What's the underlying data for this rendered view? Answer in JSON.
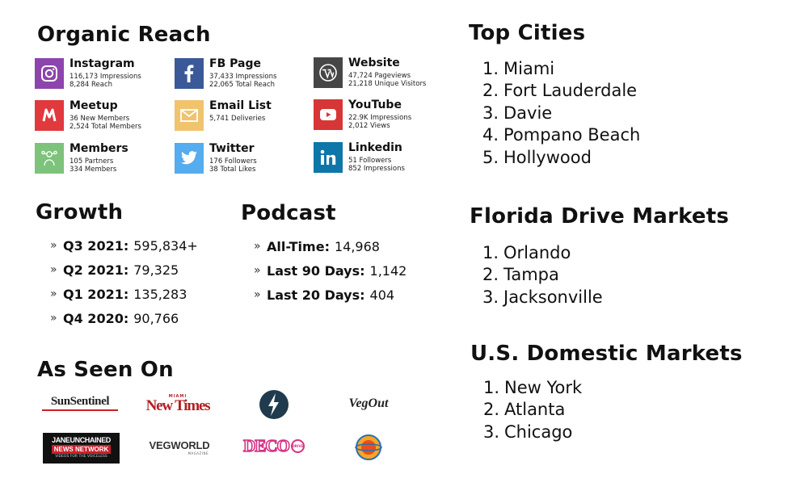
{
  "organic_reach": {
    "title": "Organic Reach",
    "tiles": [
      {
        "name": "Instagram",
        "line1": "116,173 Impressions",
        "line2": "8,284 Reach",
        "icon": "instagram-icon",
        "color": "#8e44ad"
      },
      {
        "name": "FB Page",
        "line1": "37,433 Impressions",
        "line2": "22,065 Total Reach",
        "icon": "facebook-icon",
        "color": "#3b5998"
      },
      {
        "name": "Website",
        "line1": "47,724 Pageviews",
        "line2": "21,218 Unique Visitors",
        "icon": "wordpress-icon",
        "color": "#464646"
      },
      {
        "name": "Meetup",
        "line1": "36 New Members",
        "line2": "2,524 Total Members",
        "icon": "meetup-icon",
        "color": "#e0393e"
      },
      {
        "name": "Email List",
        "line1": "5,741 Deliveries",
        "line2": "",
        "icon": "envelope-icon",
        "color": "#f0c36d"
      },
      {
        "name": "YouTube",
        "line1": "22.9K Impressions",
        "line2": "2,012 Views",
        "icon": "youtube-icon",
        "color": "#d73636"
      },
      {
        "name": "Members",
        "line1": "105 Partners",
        "line2": "334 Members",
        "icon": "members-icon",
        "color": "#7dc37b"
      },
      {
        "name": "Twitter",
        "line1": "176 Followers",
        "line2": "38 Total Likes",
        "icon": "twitter-icon",
        "color": "#55acee"
      },
      {
        "name": "Linkedin",
        "line1": "51 Followers",
        "line2": "852 Impressions",
        "icon": "linkedin-icon",
        "color": "#0e76a8"
      }
    ]
  },
  "growth": {
    "title": "Growth",
    "items": [
      {
        "label": "Q3 2021:",
        "value": "595,834+"
      },
      {
        "label": "Q2 2021:",
        "value": "79,325"
      },
      {
        "label": "Q1 2021:",
        "value": "135,283"
      },
      {
        "label": "Q4 2020:",
        "value": "90,766"
      }
    ]
  },
  "podcast": {
    "title": "Podcast",
    "items": [
      {
        "label": "All-Time:",
        "value": "14,968"
      },
      {
        "label": "Last 90 Days:",
        "value": "1,142"
      },
      {
        "label": "Last 20 Days:",
        "value": "404"
      }
    ]
  },
  "bullet_mark": "»",
  "as_seen_on": {
    "title": "As Seen On",
    "logos": {
      "sun_sentinel": "SunSentinel",
      "miami_small": "MIAMI",
      "new_times": "New Times",
      "vegout": "VegOut",
      "jane_top": "JANEUNCHAINED",
      "jane_mid": "NEWS NETWORK",
      "jane_bot": "VIDEOS FOR THE VOICELESS",
      "vegworld": "VEGWORLD",
      "vegworld_sub": "MAGAZINE",
      "deco": "DECO",
      "deco_drive": "DRIVE"
    }
  },
  "top_cities": {
    "title": "Top Cities",
    "items": [
      "Miami",
      "Fort Lauderdale",
      "Davie",
      "Pompano Beach",
      "Hollywood"
    ]
  },
  "florida_drive": {
    "title": "Florida Drive Markets",
    "items": [
      "Orlando",
      "Tampa",
      "Jacksonville"
    ]
  },
  "us_domestic": {
    "title": "U.S. Domestic Markets",
    "items": [
      "New York",
      "Atlanta",
      "Chicago"
    ]
  },
  "numbers": [
    "1.",
    "2.",
    "3.",
    "4.",
    "5."
  ]
}
